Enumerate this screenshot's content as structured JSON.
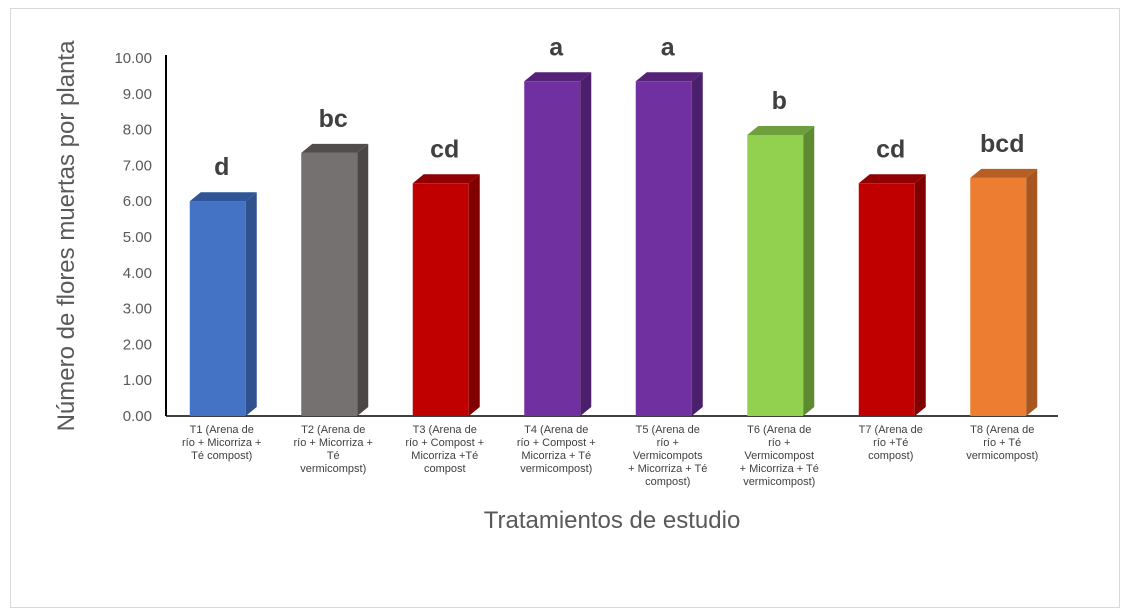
{
  "chart_data": {
    "type": "bar",
    "xlabel": "Tratamientos de estudio",
    "ylabel": "Número de flores muertas por planta",
    "ylim": [
      0,
      10
    ],
    "yticks": [
      "0.00",
      "1.00",
      "2.00",
      "3.00",
      "4.00",
      "5.00",
      "6.00",
      "7.00",
      "8.00",
      "9.00",
      "10.00"
    ],
    "grid": false,
    "bars_3d": true,
    "categories": [
      [
        "T1 (Arena de",
        "río + Micorriza +",
        "Té compost)"
      ],
      [
        "T2 (Arena de",
        "río + Micorriza +",
        "Té",
        "vermicompst)"
      ],
      [
        "T3 (Arena de",
        "río + Compost +",
        "Micorriza +Té",
        "compost"
      ],
      [
        "T4 (Arena de",
        "río + Compost +",
        "Micorriza + Té",
        "vermicompost)"
      ],
      [
        "T5 (Arena de",
        "río +",
        "Vermicompots",
        "+ Micorriza + Té",
        "compost)"
      ],
      [
        "T6 (Arena de",
        "río +",
        "Vermicompost",
        "+ Micorriza + Té",
        "vermicompost)"
      ],
      [
        "T7 (Arena de",
        "río +Té",
        "compost)"
      ],
      [
        "T8 (Arena de",
        "río + Té",
        "vermicompost)"
      ]
    ],
    "values": [
      6.0,
      7.35,
      6.5,
      9.35,
      9.35,
      7.85,
      6.5,
      6.65
    ],
    "letters": [
      "d",
      "bc",
      "cd",
      "a",
      "a",
      "b",
      "cd",
      "bcd"
    ],
    "colors": [
      {
        "front": "#4472c4",
        "side": "#2f528f",
        "top": "#2e5597"
      },
      {
        "front": "#767171",
        "side": "#4b4747",
        "top": "#514d4d"
      },
      {
        "front": "#c00000",
        "side": "#800000",
        "top": "#900000"
      },
      {
        "front": "#7030a0",
        "side": "#4b1f6b",
        "top": "#542378"
      },
      {
        "front": "#7030a0",
        "side": "#4b1f6b",
        "top": "#542378"
      },
      {
        "front": "#92d050",
        "side": "#5e8a32",
        "top": "#6f9e3c"
      },
      {
        "front": "#c00000",
        "side": "#800000",
        "top": "#900000"
      },
      {
        "front": "#ed7d31",
        "side": "#a8561f",
        "top": "#b65e24"
      }
    ]
  }
}
